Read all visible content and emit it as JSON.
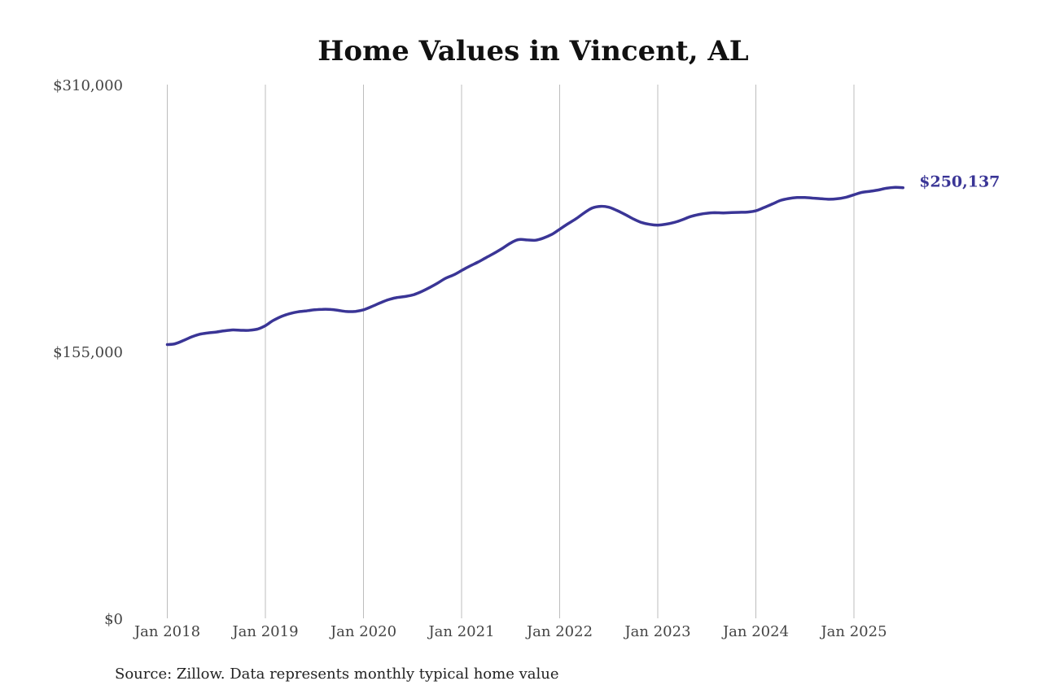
{
  "chart_data": {
    "type": "line",
    "title": "Home Values in Vincent, AL",
    "source": "Source: Zillow. Data represents monthly typical home value",
    "xlabel": "",
    "ylabel": "",
    "ylim": [
      0,
      310000
    ],
    "yticks": [
      {
        "value": 0,
        "label": "$0"
      },
      {
        "value": 155000,
        "label": "$155,000"
      },
      {
        "value": 310000,
        "label": "$310,000"
      }
    ],
    "xticks": [
      {
        "value": 2018.0,
        "label": "Jan 2018"
      },
      {
        "value": 2019.0,
        "label": "Jan 2019"
      },
      {
        "value": 2020.0,
        "label": "Jan 2020"
      },
      {
        "value": 2021.0,
        "label": "Jan 2021"
      },
      {
        "value": 2022.0,
        "label": "Jan 2022"
      },
      {
        "value": 2023.0,
        "label": "Jan 2023"
      },
      {
        "value": 2024.0,
        "label": "Jan 2024"
      },
      {
        "value": 2025.0,
        "label": "Jan 2025"
      }
    ],
    "xlim": [
      2017.62,
      2026.0
    ],
    "grid": "vertical",
    "line_color": "#3a3596",
    "end_label": "$250,137",
    "series": [
      {
        "points": [
          [
            2018.0,
            159000
          ],
          [
            2018.08,
            159500
          ],
          [
            2018.17,
            161500
          ],
          [
            2018.25,
            163500
          ],
          [
            2018.33,
            165000
          ],
          [
            2018.42,
            165800
          ],
          [
            2018.5,
            166300
          ],
          [
            2018.58,
            167000
          ],
          [
            2018.67,
            167500
          ],
          [
            2018.75,
            167300
          ],
          [
            2018.83,
            167300
          ],
          [
            2018.92,
            168000
          ],
          [
            2019.0,
            170000
          ],
          [
            2019.08,
            173000
          ],
          [
            2019.17,
            175500
          ],
          [
            2019.25,
            177000
          ],
          [
            2019.33,
            178000
          ],
          [
            2019.42,
            178600
          ],
          [
            2019.5,
            179200
          ],
          [
            2019.58,
            179500
          ],
          [
            2019.67,
            179400
          ],
          [
            2019.75,
            178800
          ],
          [
            2019.83,
            178200
          ],
          [
            2019.92,
            178300
          ],
          [
            2020.0,
            179200
          ],
          [
            2020.08,
            181000
          ],
          [
            2020.17,
            183200
          ],
          [
            2020.25,
            185000
          ],
          [
            2020.33,
            186200
          ],
          [
            2020.42,
            186900
          ],
          [
            2020.5,
            187800
          ],
          [
            2020.58,
            189500
          ],
          [
            2020.67,
            192000
          ],
          [
            2020.75,
            194500
          ],
          [
            2020.83,
            197300
          ],
          [
            2020.92,
            199500
          ],
          [
            2021.0,
            202000
          ],
          [
            2021.08,
            204500
          ],
          [
            2021.17,
            207000
          ],
          [
            2021.25,
            209500
          ],
          [
            2021.33,
            212000
          ],
          [
            2021.42,
            215000
          ],
          [
            2021.5,
            218000
          ],
          [
            2021.58,
            220000
          ],
          [
            2021.67,
            219800
          ],
          [
            2021.75,
            219600
          ],
          [
            2021.83,
            220800
          ],
          [
            2021.92,
            223000
          ],
          [
            2022.0,
            226000
          ],
          [
            2022.08,
            229000
          ],
          [
            2022.17,
            232200
          ],
          [
            2022.25,
            235500
          ],
          [
            2022.33,
            238300
          ],
          [
            2022.42,
            239300
          ],
          [
            2022.5,
            238800
          ],
          [
            2022.58,
            237000
          ],
          [
            2022.67,
            234500
          ],
          [
            2022.75,
            232000
          ],
          [
            2022.83,
            230000
          ],
          [
            2022.92,
            228800
          ],
          [
            2023.0,
            228400
          ],
          [
            2023.08,
            228900
          ],
          [
            2023.17,
            230000
          ],
          [
            2023.25,
            231500
          ],
          [
            2023.33,
            233300
          ],
          [
            2023.42,
            234600
          ],
          [
            2023.5,
            235300
          ],
          [
            2023.58,
            235600
          ],
          [
            2023.67,
            235500
          ],
          [
            2023.75,
            235700
          ],
          [
            2023.83,
            235800
          ],
          [
            2023.92,
            236000
          ],
          [
            2024.0,
            236700
          ],
          [
            2024.08,
            238500
          ],
          [
            2024.17,
            240700
          ],
          [
            2024.25,
            242700
          ],
          [
            2024.33,
            243800
          ],
          [
            2024.42,
            244400
          ],
          [
            2024.5,
            244400
          ],
          [
            2024.58,
            244100
          ],
          [
            2024.67,
            243700
          ],
          [
            2024.75,
            243400
          ],
          [
            2024.83,
            243700
          ],
          [
            2024.92,
            244600
          ],
          [
            2025.0,
            246000
          ],
          [
            2025.08,
            247400
          ],
          [
            2025.17,
            248100
          ],
          [
            2025.25,
            248800
          ],
          [
            2025.33,
            249800
          ],
          [
            2025.42,
            250300
          ],
          [
            2025.5,
            250137
          ]
        ]
      }
    ]
  }
}
